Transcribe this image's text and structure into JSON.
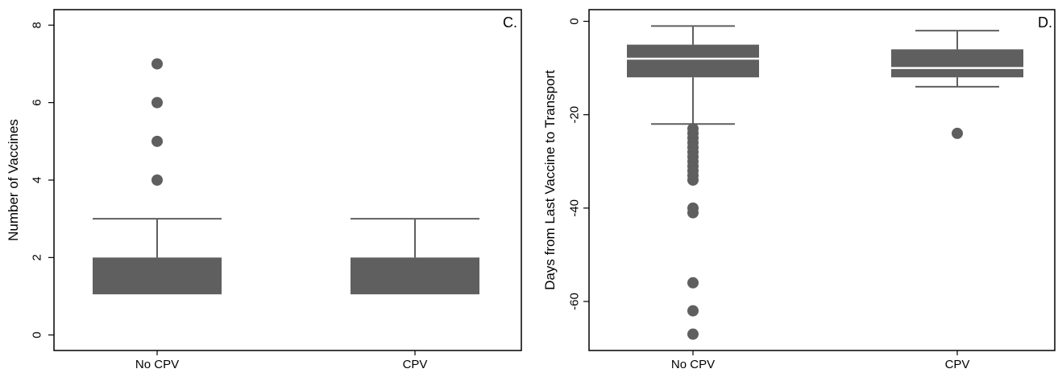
{
  "chart_data": [
    {
      "type": "box",
      "panel_label": "C.",
      "ylabel": "Number of Vaccines",
      "xlabel": "",
      "ylim": [
        -0.4,
        8.4
      ],
      "yticks": [
        0,
        2,
        4,
        6,
        8
      ],
      "ytick_labels": [
        "0",
        "2",
        "4",
        "6",
        "8"
      ],
      "categories": [
        "No CPV",
        "CPV"
      ],
      "boxes": [
        {
          "category": "No CPV",
          "q1": 1.05,
          "median": 1.05,
          "q3": 2,
          "whisker_low": 1.05,
          "whisker_high": 3,
          "outliers": [
            4,
            5,
            6,
            7
          ]
        },
        {
          "category": "CPV",
          "q1": 1.05,
          "median": 1.05,
          "q3": 2,
          "whisker_low": 1.05,
          "whisker_high": 3,
          "outliers": []
        }
      ],
      "grid": false,
      "box_color": "#5f5f5f",
      "median_color": "#ffffff"
    },
    {
      "type": "box",
      "panel_label": "D.",
      "ylabel": "Days from Last Vaccine to Transport",
      "xlabel": "",
      "ylim": [
        -70.5,
        2.5
      ],
      "yticks": [
        0,
        -20,
        -40,
        -60
      ],
      "ytick_labels": [
        "0",
        "-20",
        "-40",
        "-60"
      ],
      "categories": [
        "No CPV",
        "CPV"
      ],
      "boxes": [
        {
          "category": "No CPV",
          "q1": -12,
          "median": -8,
          "q3": -5,
          "whisker_low": -22,
          "whisker_high": -1,
          "outliers": [
            -23,
            -24,
            -25,
            -26,
            -27,
            -28,
            -29,
            -30,
            -31,
            -32,
            -33,
            -34,
            -40,
            -41,
            -56,
            -62,
            -67
          ]
        },
        {
          "category": "CPV",
          "q1": -12,
          "median": -10,
          "q3": -6,
          "whisker_low": -14,
          "whisker_high": -2,
          "outliers": [
            -24
          ]
        }
      ],
      "grid": false,
      "box_color": "#5f5f5f",
      "median_color": "#ffffff"
    }
  ]
}
